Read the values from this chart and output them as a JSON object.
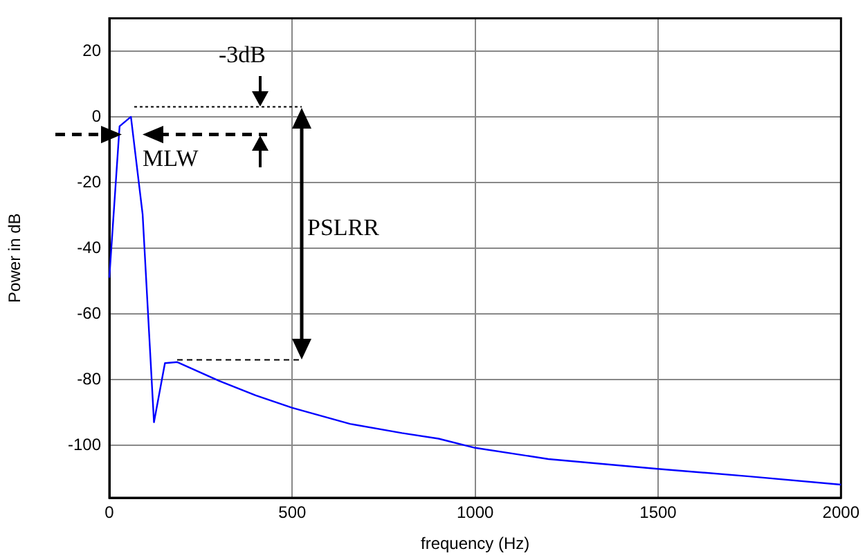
{
  "chart_data": {
    "type": "line",
    "xlabel": "frequency (Hz)",
    "ylabel": "Power in dB",
    "x": [
      0,
      28,
      59,
      91,
      122,
      152,
      186,
      300,
      400,
      500,
      658,
      800,
      900,
      1000,
      1200,
      1500,
      1750,
      2000
    ],
    "series": [
      {
        "color": "#0000ff",
        "values": [
          -49,
          -2.9,
          0,
          -29.7,
          -93,
          -75,
          -74.7,
          -80.4,
          -84.8,
          -88.6,
          -93.5,
          -96.3,
          -98,
          -100.8,
          -104.2,
          -107.2,
          -109.5,
          -112
        ]
      }
    ],
    "xlim": [
      0,
      2000
    ],
    "xticks": [
      0,
      500,
      1000,
      1500,
      2000
    ],
    "ylim": [
      -116,
      30
    ],
    "yticks": [
      -100,
      -80,
      -60,
      -40,
      -20,
      0,
      20
    ],
    "grid": true,
    "legend": false,
    "marker": "none",
    "line_style": "solid",
    "annotations": [
      "-3dB",
      "MLW",
      "PSLRR"
    ]
  }
}
